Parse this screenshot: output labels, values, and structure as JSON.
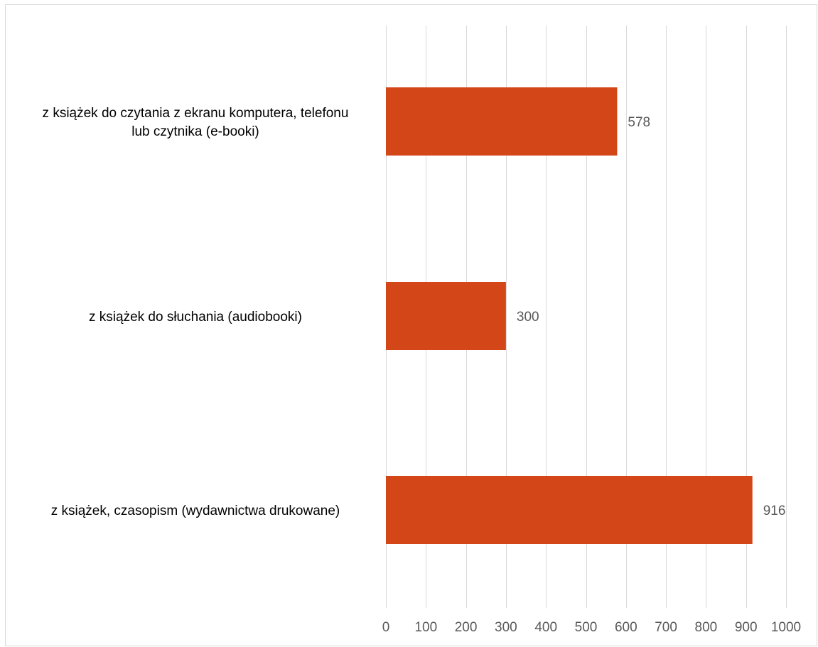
{
  "chart_data": {
    "type": "bar",
    "orientation": "horizontal",
    "title": "",
    "xlabel": "",
    "ylabel": "",
    "categories": [
      [
        "z książek do czytania z ekranu komputera, telefonu",
        "lub czytnika (e-booki)"
      ],
      [
        "z książek do słuchania (audiobooki)"
      ],
      [
        "z książek, czasopism (wydawnictwa drukowane)"
      ]
    ],
    "values": [
      578,
      300,
      916
    ],
    "value_labels": [
      "578",
      "300",
      "916"
    ],
    "xlim": [
      0,
      1000
    ],
    "ticks": [
      "0",
      "100",
      "200",
      "300",
      "400",
      "500",
      "600",
      "700",
      "800",
      "900",
      "1000"
    ],
    "grid": "vertical",
    "legend": "none",
    "bar_color": "#d24618",
    "grid_color": "#d9d9d9"
  }
}
